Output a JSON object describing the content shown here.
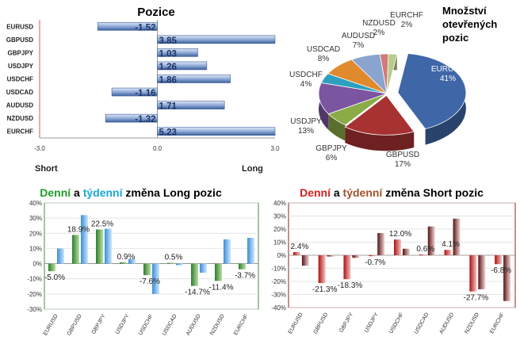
{
  "positions": {
    "title": "Pozice",
    "short_label": "Short",
    "long_label": "Long",
    "xlim": [
      -3.0,
      3.0
    ],
    "ticks": [
      "-3.0",
      "0.0",
      "3.0"
    ],
    "categories": [
      "EURUSD",
      "GBPUSD",
      "GBPJPY",
      "USDJPY",
      "USDCHF",
      "USDCAD",
      "AUDUSD",
      "NZDUSD",
      "EURCHF"
    ],
    "values": [
      -1.52,
      3.85,
      1.03,
      1.26,
      1.86,
      -1.16,
      1.71,
      -1.32,
      5.23
    ],
    "labels": [
      "-1.52",
      "3.85",
      "1.03",
      "1.26",
      "1.86",
      "-1.16",
      "1.71",
      "-1.32",
      "5.23"
    ]
  },
  "pie": {
    "title_lines": [
      "Množství",
      "otevřených",
      "pozic"
    ],
    "slices": [
      {
        "name": "EURUSD",
        "value": 41,
        "label": "41%",
        "color": "#3f67a8"
      },
      {
        "name": "GBPUSD",
        "value": 17,
        "label": "17%",
        "color": "#a83232"
      },
      {
        "name": "GBPJPY",
        "value": 6,
        "label": "6%",
        "color": "#8aab46"
      },
      {
        "name": "USDJPY",
        "value": 13,
        "label": "13%",
        "color": "#7b55a0"
      },
      {
        "name": "USDCHF",
        "value": 4,
        "label": "4%",
        "color": "#2f9fbf"
      },
      {
        "name": "USDCAD",
        "value": 8,
        "label": "8%",
        "color": "#e08a2e"
      },
      {
        "name": "AUDUSD",
        "value": 7,
        "label": "7%",
        "color": "#8aa4d0"
      },
      {
        "name": "NZDUSD",
        "value": 2,
        "label": "2%",
        "color": "#d27b78"
      },
      {
        "name": "EURCHF",
        "value": 2,
        "label": "2%",
        "color": "#b8cc8a"
      }
    ]
  },
  "long_chart": {
    "title_parts": [
      {
        "text": "Denní",
        "color": "#1e9e2a"
      },
      {
        "text": " a ",
        "color": "#000000"
      },
      {
        "text": "týdenní",
        "color": "#1aa6d6"
      },
      {
        "text": " změna Long pozic",
        "color": "#000000"
      }
    ],
    "ylim": [
      -30,
      40
    ],
    "yticks": [
      "40%",
      "30%",
      "20%",
      "10%",
      "0%",
      "-10%",
      "-20%",
      "-30%"
    ],
    "categories": [
      "EURUSD",
      "GBPUSD",
      "GBPJPY",
      "USDJPY",
      "USDCHF",
      "USDCAD",
      "AUDUSD",
      "NZDUSD",
      "EURCHF"
    ],
    "series": [
      {
        "name": "Denní",
        "color": "#2e8b2e",
        "values": [
          -5.0,
          18.9,
          22.5,
          0.9,
          -7.6,
          0.5,
          -14.7,
          -11.4,
          -3.7
        ]
      },
      {
        "name": "Týdenní",
        "color": "#4aa0e0",
        "values": [
          10,
          32,
          23,
          3,
          -20,
          -1,
          -6,
          16,
          17
        ]
      }
    ],
    "data_labels": [
      "-5.0%",
      "18.9%",
      "22.5%",
      "0.9%",
      "-7.6%",
      "0.5%",
      "-14.7%",
      "-11.4%",
      "-3.7%"
    ]
  },
  "short_chart": {
    "title_parts": [
      {
        "text": "Denní",
        "color": "#d21f1f"
      },
      {
        "text": " a ",
        "color": "#000000"
      },
      {
        "text": "týdenní",
        "color": "#a0522d"
      },
      {
        "text": " změna Short pozic",
        "color": "#000000"
      }
    ],
    "ylim": [
      -40,
      40
    ],
    "yticks": [
      "40%",
      "30%",
      "20%",
      "10%",
      "0%",
      "-10%",
      "-20%",
      "-30%",
      "-40%"
    ],
    "categories": [
      "EURUSD",
      "GBPUSD",
      "GBPJPY",
      "USDJPY",
      "USDCHF",
      "USDCAD",
      "AUDUSD",
      "NZDUSD",
      "EURCHF"
    ],
    "series": [
      {
        "name": "Denní",
        "color": "#c0181a",
        "values": [
          2.4,
          -21.3,
          -18.3,
          -0.7,
          12.0,
          0.6,
          4.1,
          -27.7,
          -6.8
        ]
      },
      {
        "name": "Týdenní",
        "color": "#7a1a1a",
        "values": [
          -8,
          -1,
          -2,
          17,
          5,
          22,
          28,
          -26,
          -35
        ]
      }
    ],
    "data_labels": [
      "2.4%",
      "-21.3%",
      "-18.3%",
      "-0.7%",
      "12.0%",
      "0.6%",
      "4.1%",
      "-27.7%",
      "-6.8%"
    ]
  },
  "colors": {
    "position_bar": "#6b8fc6",
    "position_bar_dark": "#34558f",
    "grid": "#d9d9d9",
    "axis_text": "#333333",
    "long_border": "#4a8a4a",
    "short_border": "#8b2020"
  }
}
